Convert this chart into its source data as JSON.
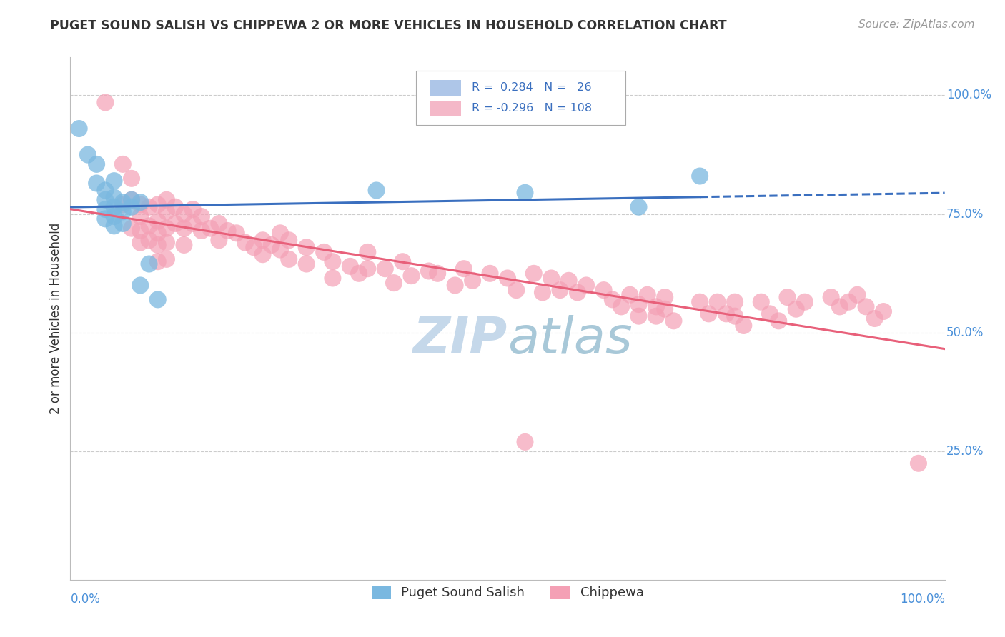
{
  "title": "PUGET SOUND SALISH VS CHIPPEWA 2 OR MORE VEHICLES IN HOUSEHOLD CORRELATION CHART",
  "source": "Source: ZipAtlas.com",
  "ylabel": "2 or more Vehicles in Household",
  "xlim": [
    0.0,
    1.0
  ],
  "ylim": [
    -0.02,
    1.08
  ],
  "yticks": [
    0.25,
    0.5,
    0.75,
    1.0
  ],
  "ytick_labels": [
    "25.0%",
    "50.0%",
    "75.0%",
    "100.0%"
  ],
  "blue_color": "#7ab8e0",
  "pink_color": "#f4a0b5",
  "blue_line_color": "#3a6fbf",
  "pink_line_color": "#e8607a",
  "background_color": "#ffffff",
  "grid_color": "#cccccc",
  "title_color": "#333333",
  "source_color": "#999999",
  "ylabel_color": "#333333",
  "tick_label_color": "#4a90d9",
  "watermark_color": "#c5d8ea",
  "legend_box_color": "#aaaaaa",
  "legend_text_color": "#3a6fbf",
  "blue_scatter": [
    [
      0.01,
      0.93
    ],
    [
      0.02,
      0.875
    ],
    [
      0.03,
      0.855
    ],
    [
      0.03,
      0.815
    ],
    [
      0.04,
      0.8
    ],
    [
      0.04,
      0.78
    ],
    [
      0.04,
      0.76
    ],
    [
      0.04,
      0.74
    ],
    [
      0.05,
      0.82
    ],
    [
      0.05,
      0.785
    ],
    [
      0.05,
      0.765
    ],
    [
      0.05,
      0.745
    ],
    [
      0.05,
      0.725
    ],
    [
      0.06,
      0.775
    ],
    [
      0.06,
      0.755
    ],
    [
      0.06,
      0.73
    ],
    [
      0.07,
      0.78
    ],
    [
      0.07,
      0.765
    ],
    [
      0.08,
      0.775
    ],
    [
      0.08,
      0.6
    ],
    [
      0.09,
      0.645
    ],
    [
      0.1,
      0.57
    ],
    [
      0.35,
      0.8
    ],
    [
      0.52,
      0.795
    ],
    [
      0.65,
      0.765
    ],
    [
      0.72,
      0.83
    ]
  ],
  "pink_scatter": [
    [
      0.04,
      0.985
    ],
    [
      0.06,
      0.855
    ],
    [
      0.06,
      0.77
    ],
    [
      0.07,
      0.825
    ],
    [
      0.07,
      0.78
    ],
    [
      0.07,
      0.72
    ],
    [
      0.08,
      0.77
    ],
    [
      0.08,
      0.745
    ],
    [
      0.08,
      0.715
    ],
    [
      0.08,
      0.69
    ],
    [
      0.09,
      0.765
    ],
    [
      0.09,
      0.725
    ],
    [
      0.09,
      0.695
    ],
    [
      0.1,
      0.77
    ],
    [
      0.1,
      0.735
    ],
    [
      0.1,
      0.71
    ],
    [
      0.1,
      0.685
    ],
    [
      0.1,
      0.65
    ],
    [
      0.11,
      0.78
    ],
    [
      0.11,
      0.755
    ],
    [
      0.11,
      0.72
    ],
    [
      0.11,
      0.69
    ],
    [
      0.11,
      0.655
    ],
    [
      0.12,
      0.765
    ],
    [
      0.12,
      0.73
    ],
    [
      0.13,
      0.75
    ],
    [
      0.13,
      0.72
    ],
    [
      0.13,
      0.685
    ],
    [
      0.14,
      0.76
    ],
    [
      0.14,
      0.73
    ],
    [
      0.15,
      0.745
    ],
    [
      0.15,
      0.715
    ],
    [
      0.16,
      0.72
    ],
    [
      0.17,
      0.73
    ],
    [
      0.17,
      0.695
    ],
    [
      0.18,
      0.715
    ],
    [
      0.19,
      0.71
    ],
    [
      0.2,
      0.69
    ],
    [
      0.21,
      0.68
    ],
    [
      0.22,
      0.695
    ],
    [
      0.22,
      0.665
    ],
    [
      0.23,
      0.685
    ],
    [
      0.24,
      0.71
    ],
    [
      0.24,
      0.675
    ],
    [
      0.25,
      0.695
    ],
    [
      0.25,
      0.655
    ],
    [
      0.27,
      0.68
    ],
    [
      0.27,
      0.645
    ],
    [
      0.29,
      0.67
    ],
    [
      0.3,
      0.65
    ],
    [
      0.3,
      0.615
    ],
    [
      0.32,
      0.64
    ],
    [
      0.33,
      0.625
    ],
    [
      0.34,
      0.67
    ],
    [
      0.34,
      0.635
    ],
    [
      0.36,
      0.635
    ],
    [
      0.37,
      0.605
    ],
    [
      0.38,
      0.65
    ],
    [
      0.39,
      0.62
    ],
    [
      0.41,
      0.63
    ],
    [
      0.42,
      0.625
    ],
    [
      0.44,
      0.6
    ],
    [
      0.45,
      0.635
    ],
    [
      0.46,
      0.61
    ],
    [
      0.48,
      0.625
    ],
    [
      0.5,
      0.615
    ],
    [
      0.51,
      0.59
    ],
    [
      0.52,
      0.27
    ],
    [
      0.53,
      0.625
    ],
    [
      0.54,
      0.585
    ],
    [
      0.55,
      0.615
    ],
    [
      0.56,
      0.59
    ],
    [
      0.57,
      0.61
    ],
    [
      0.58,
      0.585
    ],
    [
      0.59,
      0.6
    ],
    [
      0.61,
      0.59
    ],
    [
      0.62,
      0.57
    ],
    [
      0.63,
      0.555
    ],
    [
      0.64,
      0.58
    ],
    [
      0.65,
      0.56
    ],
    [
      0.65,
      0.535
    ],
    [
      0.66,
      0.58
    ],
    [
      0.67,
      0.555
    ],
    [
      0.67,
      0.535
    ],
    [
      0.68,
      0.575
    ],
    [
      0.68,
      0.55
    ],
    [
      0.69,
      0.525
    ],
    [
      0.72,
      0.565
    ],
    [
      0.73,
      0.54
    ],
    [
      0.74,
      0.565
    ],
    [
      0.75,
      0.54
    ],
    [
      0.76,
      0.565
    ],
    [
      0.76,
      0.535
    ],
    [
      0.77,
      0.515
    ],
    [
      0.79,
      0.565
    ],
    [
      0.8,
      0.54
    ],
    [
      0.81,
      0.525
    ],
    [
      0.82,
      0.575
    ],
    [
      0.83,
      0.55
    ],
    [
      0.84,
      0.565
    ],
    [
      0.87,
      0.575
    ],
    [
      0.88,
      0.555
    ],
    [
      0.89,
      0.565
    ],
    [
      0.9,
      0.58
    ],
    [
      0.91,
      0.555
    ],
    [
      0.92,
      0.53
    ],
    [
      0.93,
      0.545
    ],
    [
      0.97,
      0.225
    ]
  ]
}
